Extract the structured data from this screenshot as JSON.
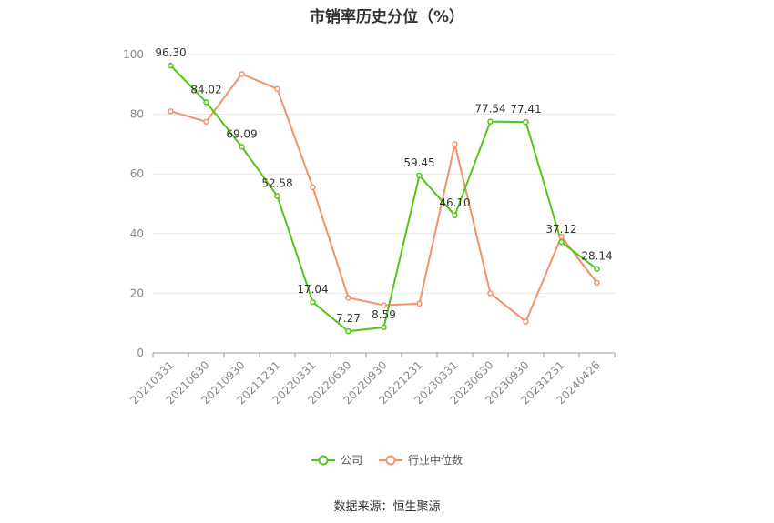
{
  "chart_data": {
    "type": "line",
    "title": "市销率历史分位（%）",
    "categories": [
      "20210331",
      "20210630",
      "20210930",
      "20211231",
      "20220331",
      "20220630",
      "20220930",
      "20221231",
      "20230331",
      "20230630",
      "20230930",
      "20231231",
      "20240426"
    ],
    "ylim": [
      0,
      100
    ],
    "yticks": [
      "0",
      "20",
      "40",
      "60",
      "80",
      "100"
    ],
    "grid": true,
    "legend_position": "bottom",
    "series": [
      {
        "name": "公司",
        "color": "#52c41a",
        "values": [
          96.3,
          84.02,
          69.09,
          52.58,
          17.04,
          7.27,
          8.59,
          59.45,
          46.1,
          77.54,
          77.41,
          37.12,
          28.14
        ],
        "labels": [
          "96.30",
          "84.02",
          "69.09",
          "52.58",
          "17.04",
          "7.27",
          "8.59",
          "59.45",
          "46.10",
          "77.54",
          "77.41",
          "37.12",
          "28.14"
        ]
      },
      {
        "name": "行业中位数",
        "color": "#f4916a",
        "values": [
          81,
          77.5,
          93.5,
          88.5,
          55.5,
          18.5,
          16,
          16.5,
          70,
          20,
          10.5,
          39,
          23.5
        ]
      }
    ]
  },
  "source": "数据来源：恒生聚源"
}
